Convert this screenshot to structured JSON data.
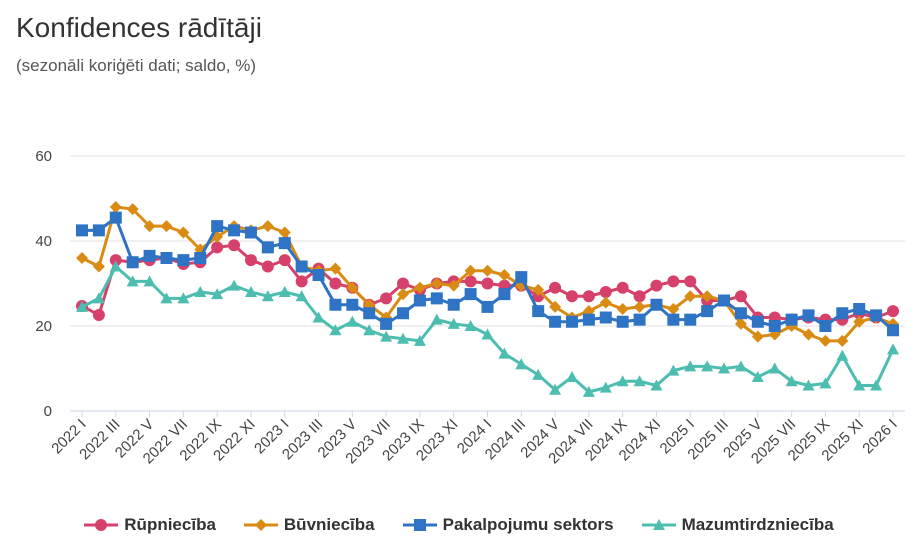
{
  "chart_data": {
    "type": "line",
    "title": "Konfidences rādītāji",
    "subtitle": "(sezonāli koriģēti dati; saldo, %)",
    "xlabel": "",
    "ylabel": "",
    "ylim": [
      0,
      60
    ],
    "yticks": [
      "0",
      "20",
      "40",
      "60"
    ],
    "grid": true,
    "legend_position": "bottom",
    "x_tick_labels": [
      "2022 I",
      "2022 III",
      "2022 V",
      "2022 VII",
      "2022 IX",
      "2022 XI",
      "2023 I",
      "2023 III",
      "2023 V",
      "2023 VII",
      "2023 IX",
      "2023 XI",
      "2024 I",
      "2024 III",
      "2024 V",
      "2024 VII",
      "2024 IX",
      "2024 XI",
      "2025 I",
      "2025 III",
      "2025 V",
      "2025 VII",
      "2025 IX",
      "2025 XI",
      "2026 I"
    ],
    "series": [
      {
        "name": "Rūpniecība",
        "color": "#d6416b",
        "marker": "circle",
        "values": [
          24.7,
          22.6,
          35.5,
          35,
          35.5,
          36,
          34.6,
          35,
          38.5,
          39,
          35.5,
          34,
          35.5,
          30.5,
          33.5,
          30,
          29,
          25,
          26.5,
          30,
          28.5,
          30,
          30.5,
          30.5,
          30,
          29.5,
          29.5,
          27,
          29,
          27,
          27,
          28,
          29,
          27,
          29.5,
          30.5,
          30.5,
          26,
          26,
          27,
          22,
          22,
          21.5,
          22,
          21.5,
          21.5,
          23,
          22,
          23.5
        ]
      },
      {
        "name": "Būvniecība",
        "color": "#d98b14",
        "marker": "diamond",
        "values": [
          36,
          34,
          48,
          47.5,
          43.5,
          43.5,
          42,
          38,
          41,
          43.5,
          42.5,
          43.5,
          42,
          34,
          33,
          33.5,
          29,
          25,
          22,
          27.5,
          29,
          30,
          29.5,
          33,
          33,
          32,
          29.5,
          28.5,
          24.5,
          22,
          23.5,
          25.5,
          24,
          24.5,
          25,
          24,
          27,
          27,
          26,
          20.5,
          17.5,
          18,
          20,
          18,
          16.5,
          16.5,
          21,
          22,
          20.5
        ]
      },
      {
        "name": "Pakalpojumu sektors",
        "color": "#2f73c4",
        "marker": "square",
        "values": [
          42.5,
          42.5,
          45.5,
          35,
          36.5,
          36,
          35.5,
          36,
          43.5,
          42.5,
          42,
          38.5,
          39.5,
          34,
          32,
          25,
          25,
          23,
          20.5,
          23,
          26,
          26.5,
          25,
          27.5,
          24.5,
          27.5,
          31.5,
          23.5,
          21,
          21,
          21.5,
          22,
          21,
          21.5,
          25,
          21.5,
          21.5,
          23.5,
          26,
          23,
          21,
          20,
          21.5,
          22.5,
          20,
          23,
          24,
          22.5,
          19
        ]
      },
      {
        "name": "Mazumtirdzniecība",
        "color": "#4dbdb0",
        "marker": "triangle",
        "values": [
          24.5,
          26.5,
          34,
          30.5,
          30.5,
          26.5,
          26.5,
          28,
          27.5,
          29.5,
          28,
          27,
          28,
          27,
          22,
          19,
          21,
          19,
          17.5,
          17,
          16.5,
          21.5,
          20.5,
          20,
          18,
          13.5,
          11,
          8.5,
          5,
          8,
          4.5,
          5.5,
          7,
          7,
          6,
          9.5,
          10.5,
          10.5,
          10,
          10.5,
          8,
          10,
          7,
          6,
          6.5,
          13,
          6,
          6,
          14.5
        ]
      }
    ]
  }
}
